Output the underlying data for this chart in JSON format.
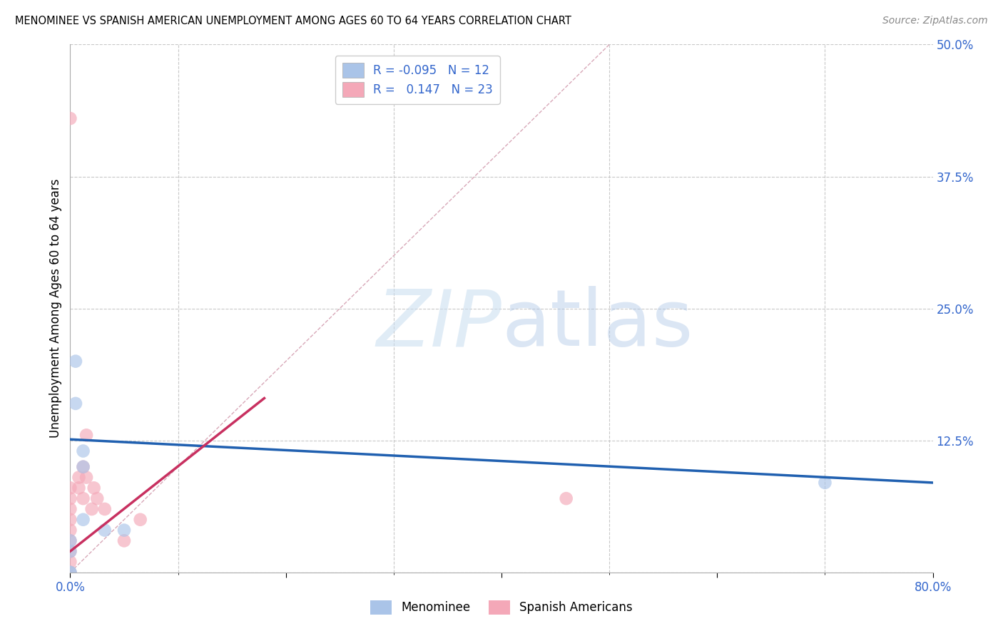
{
  "title": "MENOMINEE VS SPANISH AMERICAN UNEMPLOYMENT AMONG AGES 60 TO 64 YEARS CORRELATION CHART",
  "source": "Source: ZipAtlas.com",
  "ylabel": "Unemployment Among Ages 60 to 64 years",
  "xlim": [
    0.0,
    0.8
  ],
  "ylim": [
    0.0,
    0.5
  ],
  "xticks": [
    0.0,
    0.2,
    0.4,
    0.6,
    0.8
  ],
  "xticklabels": [
    "0.0%",
    "",
    "",
    "",
    "80.0%"
  ],
  "yticks": [
    0.0,
    0.125,
    0.25,
    0.375,
    0.5
  ],
  "yticklabels": [
    "",
    "12.5%",
    "25.0%",
    "37.5%",
    "50.0%"
  ],
  "background_color": "#ffffff",
  "grid_color": "#c8c8c8",
  "watermark_zip": "ZIP",
  "watermark_atlas": "atlas",
  "menominee_color": "#aac4e8",
  "spanish_color": "#f4a8b8",
  "trendline_menominee_color": "#2060b0",
  "trendline_spanish_color": "#c83060",
  "diagonal_color": "#d8a8b8",
  "menominee_x": [
    0.0,
    0.0,
    0.0,
    0.0,
    0.005,
    0.005,
    0.012,
    0.012,
    0.012,
    0.032,
    0.05,
    0.7
  ],
  "menominee_y": [
    0.0,
    0.0,
    0.02,
    0.03,
    0.16,
    0.2,
    0.05,
    0.1,
    0.115,
    0.04,
    0.04,
    0.085
  ],
  "spanish_x": [
    0.0,
    0.0,
    0.0,
    0.0,
    0.0,
    0.0,
    0.0,
    0.0,
    0.0,
    0.0,
    0.008,
    0.008,
    0.012,
    0.012,
    0.015,
    0.015,
    0.02,
    0.022,
    0.025,
    0.032,
    0.05,
    0.065,
    0.46
  ],
  "spanish_y": [
    0.0,
    0.01,
    0.02,
    0.03,
    0.04,
    0.05,
    0.06,
    0.07,
    0.08,
    0.43,
    0.08,
    0.09,
    0.07,
    0.1,
    0.09,
    0.13,
    0.06,
    0.08,
    0.07,
    0.06,
    0.03,
    0.05,
    0.07
  ],
  "marker_size": 180,
  "men_trend_x0": 0.0,
  "men_trend_y0": 0.126,
  "men_trend_x1": 0.8,
  "men_trend_y1": 0.085,
  "spa_trend_x0": 0.0,
  "spa_trend_y0": 0.02,
  "spa_trend_x1": 0.18,
  "spa_trend_y1": 0.165
}
